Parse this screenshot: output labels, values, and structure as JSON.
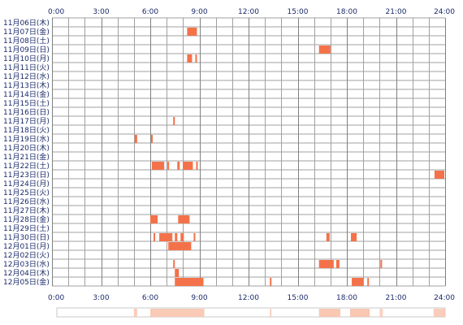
{
  "chart_data": {
    "type": "heatmap",
    "hour_ticks": [
      "0:00",
      "3:00",
      "6:00",
      "9:00",
      "12:00",
      "15:00",
      "18:00",
      "21:00",
      "24:00"
    ],
    "days": [
      "11月06日(木)",
      "11月07日(金)",
      "11月08日(土)",
      "11月09日(日)",
      "11月10日(月)",
      "11月11日(火)",
      "11月12日(水)",
      "11月13日(木)",
      "11月14日(金)",
      "11月15日(土)",
      "11月16日(日)",
      "11月17日(月)",
      "11月18日(火)",
      "11月19日(水)",
      "11月20日(木)",
      "11月21日(金)",
      "11月22日(土)",
      "11月23日(日)",
      "11月24日(月)",
      "11月25日(火)",
      "11月26日(水)",
      "11月27日(木)",
      "11月28日(金)",
      "11月29日(土)",
      "11月30日(日)",
      "12月01日(月)",
      "12月02日(火)",
      "12月03日(水)",
      "12月04日(木)",
      "12月05日(金)"
    ],
    "xlim": [
      0,
      24
    ],
    "grid": true,
    "colors": {
      "activity": "#f4724a",
      "grid": "#a0a0a0",
      "label": "#1a2a6a",
      "summary": "#f9c7b2"
    },
    "activity": [
      {
        "day": 1,
        "start": 8.25,
        "end": 8.85
      },
      {
        "day": 3,
        "start": 16.3,
        "end": 17.0
      },
      {
        "day": 4,
        "start": 8.25,
        "end": 8.55
      },
      {
        "day": 4,
        "start": 8.75,
        "end": 8.85
      },
      {
        "day": 11,
        "start": 7.4,
        "end": 7.5
      },
      {
        "day": 13,
        "start": 5.05,
        "end": 5.2
      },
      {
        "day": 13,
        "start": 6.05,
        "end": 6.15
      },
      {
        "day": 16,
        "start": 6.1,
        "end": 6.85
      },
      {
        "day": 16,
        "start": 7.05,
        "end": 7.15
      },
      {
        "day": 16,
        "start": 7.65,
        "end": 7.8
      },
      {
        "day": 16,
        "start": 8.0,
        "end": 8.6
      },
      {
        "day": 16,
        "start": 8.8,
        "end": 8.9
      },
      {
        "day": 17,
        "start": 23.35,
        "end": 23.95
      },
      {
        "day": 22,
        "start": 6.0,
        "end": 6.45
      },
      {
        "day": 22,
        "start": 7.7,
        "end": 8.4
      },
      {
        "day": 24,
        "start": 6.2,
        "end": 6.3
      },
      {
        "day": 24,
        "start": 6.55,
        "end": 7.35
      },
      {
        "day": 24,
        "start": 7.5,
        "end": 7.65
      },
      {
        "day": 24,
        "start": 7.85,
        "end": 8.05
      },
      {
        "day": 24,
        "start": 8.65,
        "end": 8.75
      },
      {
        "day": 24,
        "start": 16.75,
        "end": 16.95
      },
      {
        "day": 24,
        "start": 18.25,
        "end": 18.6
      },
      {
        "day": 25,
        "start": 7.1,
        "end": 8.5
      },
      {
        "day": 27,
        "start": 7.4,
        "end": 7.5
      },
      {
        "day": 27,
        "start": 16.3,
        "end": 17.2
      },
      {
        "day": 27,
        "start": 17.35,
        "end": 17.55
      },
      {
        "day": 27,
        "start": 20.05,
        "end": 20.15
      },
      {
        "day": 28,
        "start": 7.5,
        "end": 7.75
      },
      {
        "day": 29,
        "start": 7.5,
        "end": 9.25
      },
      {
        "day": 29,
        "start": 13.3,
        "end": 13.4
      },
      {
        "day": 29,
        "start": 18.3,
        "end": 19.0
      },
      {
        "day": 29,
        "start": 19.25,
        "end": 19.35
      }
    ],
    "summary": [
      {
        "start": 5.0,
        "end": 5.2,
        "level": 0.4
      },
      {
        "start": 6.0,
        "end": 9.3,
        "level": 0.45
      },
      {
        "start": 13.3,
        "end": 13.4,
        "level": 0.35
      },
      {
        "start": 16.3,
        "end": 17.6,
        "level": 0.5
      },
      {
        "start": 18.2,
        "end": 19.4,
        "level": 0.5
      },
      {
        "start": 20.0,
        "end": 20.2,
        "level": 0.3
      },
      {
        "start": 23.3,
        "end": 24.0,
        "level": 0.4
      }
    ]
  }
}
